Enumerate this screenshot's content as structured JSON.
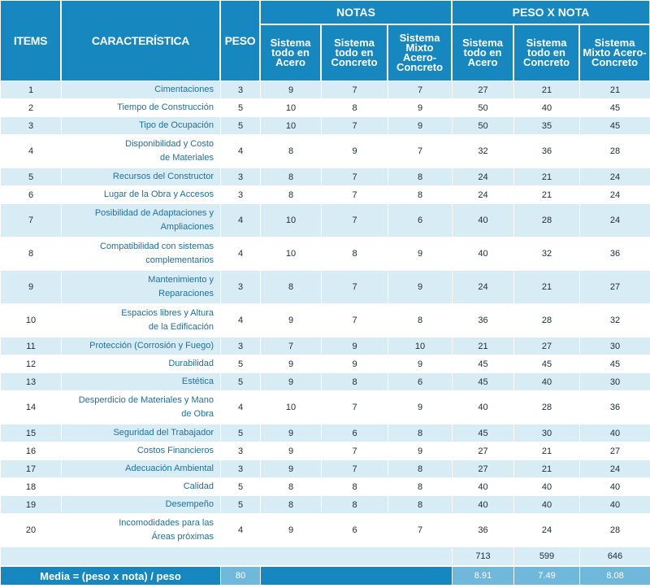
{
  "headers": {
    "items": "ITEMS",
    "caracteristica": "CARACTERÍSTICA",
    "peso": "PESO",
    "notas": "NOTAS",
    "peso_x_nota": "PESO X NOTA",
    "sub": [
      "Sistema todo en Acero",
      "Sistema todo en Concreto",
      "Sistema Mixto Acero-Concreto"
    ]
  },
  "rows": [
    {
      "item": "1",
      "char": [
        "Cimentaciones"
      ],
      "peso": "3",
      "n1": "9",
      "n2": "7",
      "n3": "7",
      "p1": "27",
      "p2": "21",
      "p3": "21"
    },
    {
      "item": "2",
      "char": [
        "Tiempo de Construcción"
      ],
      "peso": "5",
      "n1": "10",
      "n2": "8",
      "n3": "9",
      "p1": "50",
      "p2": "40",
      "p3": "45"
    },
    {
      "item": "3",
      "char": [
        "Tipo de Ocupación"
      ],
      "peso": "5",
      "n1": "10",
      "n2": "7",
      "n3": "9",
      "p1": "50",
      "p2": "35",
      "p3": "45"
    },
    {
      "item": "4",
      "char": [
        "Disponibilidad y Costo",
        "de Materiales"
      ],
      "peso": "4",
      "n1": "8",
      "n2": "9",
      "n3": "7",
      "p1": "32",
      "p2": "36",
      "p3": "28"
    },
    {
      "item": "5",
      "char": [
        "Recursos del Constructor"
      ],
      "peso": "3",
      "n1": "8",
      "n2": "7",
      "n3": "8",
      "p1": "24",
      "p2": "21",
      "p3": "24"
    },
    {
      "item": "6",
      "char": [
        "Lugar de la Obra y Accesos"
      ],
      "peso": "3",
      "n1": "8",
      "n2": "7",
      "n3": "8",
      "p1": "24",
      "p2": "21",
      "p3": "24"
    },
    {
      "item": "7",
      "char": [
        "Posibilidad de Adaptaciones y",
        "Ampliaciones"
      ],
      "peso": "4",
      "n1": "10",
      "n2": "7",
      "n3": "6",
      "p1": "40",
      "p2": "28",
      "p3": "24"
    },
    {
      "item": "8",
      "char": [
        "Compatibilidad con sistemas",
        "complementarios"
      ],
      "peso": "4",
      "n1": "10",
      "n2": "8",
      "n3": "9",
      "p1": "40",
      "p2": "32",
      "p3": "36"
    },
    {
      "item": "9",
      "char": [
        "Mantenimiento y",
        "Reparaciones"
      ],
      "peso": "3",
      "n1": "8",
      "n2": "7",
      "n3": "9",
      "p1": "24",
      "p2": "21",
      "p3": "27"
    },
    {
      "item": "10",
      "char": [
        "Espacios libres y Altura",
        "de la Edificación"
      ],
      "peso": "4",
      "n1": "9",
      "n2": "7",
      "n3": "8",
      "p1": "36",
      "p2": "28",
      "p3": "32"
    },
    {
      "item": "11",
      "char": [
        "Protección (Corrosión y Fuego)"
      ],
      "peso": "3",
      "n1": "7",
      "n2": "9",
      "n3": "10",
      "p1": "21",
      "p2": "27",
      "p3": "30"
    },
    {
      "item": "12",
      "char": [
        "Durabilidad"
      ],
      "peso": "5",
      "n1": "9",
      "n2": "9",
      "n3": "9",
      "p1": "45",
      "p2": "45",
      "p3": "45"
    },
    {
      "item": "13",
      "char": [
        "Estética"
      ],
      "peso": "5",
      "n1": "9",
      "n2": "8",
      "n3": "6",
      "p1": "45",
      "p2": "40",
      "p3": "30"
    },
    {
      "item": "14",
      "char": [
        "Desperdicio de Materiales y Mano",
        "de Obra"
      ],
      "peso": "4",
      "n1": "10",
      "n2": "7",
      "n3": "9",
      "p1": "40",
      "p2": "28",
      "p3": "36"
    },
    {
      "item": "15",
      "char": [
        "Seguridad del Trabajador"
      ],
      "peso": "5",
      "n1": "9",
      "n2": "6",
      "n3": "8",
      "p1": "45",
      "p2": "30",
      "p3": "40"
    },
    {
      "item": "16",
      "char": [
        "Costos Financieros"
      ],
      "peso": "3",
      "n1": "9",
      "n2": "7",
      "n3": "9",
      "p1": "27",
      "p2": "21",
      "p3": "27"
    },
    {
      "item": "17",
      "char": [
        "Adecuación Ambiental"
      ],
      "peso": "3",
      "n1": "9",
      "n2": "7",
      "n3": "8",
      "p1": "27",
      "p2": "21",
      "p3": "24"
    },
    {
      "item": "18",
      "char": [
        "Calidad"
      ],
      "peso": "5",
      "n1": "8",
      "n2": "8",
      "n3": "8",
      "p1": "40",
      "p2": "40",
      "p3": "40"
    },
    {
      "item": "19",
      "char": [
        "Desempeño"
      ],
      "peso": "5",
      "n1": "8",
      "n2": "8",
      "n3": "8",
      "p1": "40",
      "p2": "40",
      "p3": "40"
    },
    {
      "item": "20",
      "char": [
        "Incomodidades para las",
        "Áreas próximas"
      ],
      "peso": "4",
      "n1": "9",
      "n2": "6",
      "n3": "7",
      "p1": "36",
      "p2": "24",
      "p3": "28"
    }
  ],
  "totals": {
    "p1": "713",
    "p2": "599",
    "p3": "646"
  },
  "media": {
    "label": "Media  = (peso x nota) / peso",
    "peso_total": "80",
    "p1": "8.91",
    "p2": "7.49",
    "p3": "8.08"
  },
  "colors": {
    "header": "#1788bf",
    "stripe": "#d8ecf5",
    "media_value": "#6fb8dc",
    "char_text": "#1f6fa3"
  }
}
